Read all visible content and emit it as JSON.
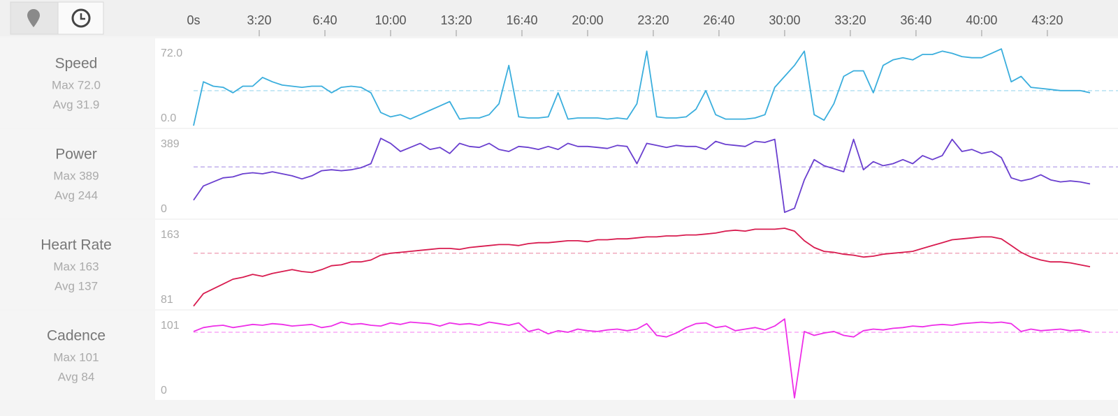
{
  "chart_data": {
    "type": "line",
    "x": [
      0,
      30,
      60,
      90,
      120,
      150,
      180,
      210,
      240,
      270,
      300,
      330,
      360,
      390,
      420,
      450,
      480,
      510,
      540,
      570,
      600,
      630,
      660,
      690,
      720,
      750,
      780,
      810,
      840,
      870,
      900,
      930,
      960,
      990,
      1020,
      1050,
      1080,
      1110,
      1140,
      1170,
      1200,
      1230,
      1260,
      1290,
      1320,
      1350,
      1380,
      1410,
      1440,
      1470,
      1500,
      1530,
      1560,
      1590,
      1620,
      1650,
      1680,
      1710,
      1740,
      1770,
      1800,
      1830,
      1860,
      1890,
      1920,
      1950,
      1980,
      2010,
      2040,
      2070,
      2100,
      2130,
      2160,
      2190,
      2220,
      2250,
      2280,
      2310,
      2340,
      2370,
      2400,
      2430,
      2460,
      2490,
      2520,
      2550,
      2580,
      2610,
      2640,
      2670,
      2700,
      2730
    ],
    "xlim": [
      0,
      2747
    ],
    "xticks": [
      {
        "value": 0,
        "label": "0s"
      },
      {
        "value": 200,
        "label": "3:20"
      },
      {
        "value": 400,
        "label": "6:40"
      },
      {
        "value": 600,
        "label": "10:00"
      },
      {
        "value": 800,
        "label": "13:20"
      },
      {
        "value": 1000,
        "label": "16:40"
      },
      {
        "value": 1200,
        "label": "20:00"
      },
      {
        "value": 1400,
        "label": "23:20"
      },
      {
        "value": 1600,
        "label": "26:40"
      },
      {
        "value": 1800,
        "label": "30:00"
      },
      {
        "value": 2000,
        "label": "33:20"
      },
      {
        "value": 2200,
        "label": "36:40"
      },
      {
        "value": 2400,
        "label": "40:00"
      },
      {
        "value": 2600,
        "label": "43:20"
      }
    ],
    "series": [
      {
        "name": "Speed",
        "color": "#3aaedd",
        "max": 72.0,
        "max_label": "Max 72.0",
        "avg": 31.9,
        "avg_label": "Avg 31.9",
        "ylim": [
          0,
          72.0
        ],
        "yticks": [
          {
            "value": 0,
            "label": "0.0"
          },
          {
            "value": 72.0,
            "label": "72.0"
          }
        ],
        "values": [
          0,
          40,
          36,
          35,
          30,
          36,
          36,
          44,
          40,
          37,
          36,
          35,
          36,
          36,
          30,
          35,
          36,
          35,
          30,
          12,
          8,
          10,
          6,
          10,
          14,
          18,
          22,
          6,
          7,
          7,
          10,
          20,
          55,
          8,
          7,
          7,
          8,
          30,
          6,
          7,
          7,
          7,
          6,
          7,
          6,
          20,
          68,
          8,
          7,
          7,
          8,
          15,
          32,
          10,
          6,
          6,
          6,
          7,
          10,
          35,
          45,
          55,
          68,
          10,
          5,
          20,
          45,
          50,
          50,
          30,
          55,
          60,
          62,
          60,
          65,
          65,
          68,
          66,
          63,
          62,
          62,
          66,
          70,
          40,
          45,
          35,
          34,
          33,
          32,
          32,
          32,
          30
        ]
      },
      {
        "name": "Power",
        "color": "#6a3fcf",
        "max": 389,
        "max_label": "Max 389",
        "avg": 244,
        "avg_label": "Avg 244",
        "ylim": [
          0,
          389
        ],
        "yticks": [
          0,
          389
        ],
        "values": [
          80,
          150,
          170,
          190,
          195,
          210,
          215,
          210,
          220,
          210,
          200,
          185,
          200,
          225,
          230,
          225,
          230,
          240,
          260,
          385,
          360,
          320,
          340,
          360,
          330,
          340,
          310,
          360,
          345,
          340,
          360,
          330,
          320,
          345,
          340,
          330,
          345,
          330,
          360,
          345,
          345,
          340,
          335,
          350,
          345,
          260,
          360,
          350,
          340,
          350,
          345,
          345,
          330,
          370,
          355,
          350,
          345,
          370,
          365,
          380,
          20,
          40,
          180,
          280,
          250,
          235,
          220,
          380,
          230,
          270,
          250,
          260,
          280,
          260,
          300,
          280,
          300,
          380,
          320,
          330,
          310,
          320,
          290,
          190,
          175,
          185,
          205,
          180,
          170,
          175,
          170,
          160
        ]
      },
      {
        "name": "Heart Rate",
        "color": "#d81b4f",
        "max": 163,
        "max_label": "Max 163",
        "avg": 137,
        "avg_label": "Avg 137",
        "ylim": [
          81,
          163
        ],
        "yticks": [
          81,
          163
        ],
        "values": [
          82,
          95,
          100,
          105,
          110,
          112,
          115,
          113,
          116,
          118,
          120,
          118,
          117,
          120,
          124,
          125,
          128,
          128,
          130,
          135,
          137,
          138,
          139,
          140,
          141,
          142,
          142,
          141,
          143,
          144,
          145,
          146,
          146,
          145,
          147,
          148,
          148,
          149,
          150,
          150,
          149,
          151,
          151,
          152,
          152,
          153,
          154,
          154,
          155,
          155,
          156,
          156,
          157,
          158,
          160,
          161,
          160,
          162,
          162,
          162,
          163,
          160,
          150,
          143,
          139,
          138,
          136,
          135,
          133,
          134,
          136,
          137,
          138,
          139,
          142,
          145,
          148,
          151,
          152,
          153,
          154,
          154,
          152,
          145,
          138,
          133,
          130,
          128,
          128,
          127,
          125,
          123
        ]
      },
      {
        "name": "Cadence",
        "color": "#ee2ee8",
        "max": 101,
        "max_label": "Max 101",
        "avg": 84,
        "avg_label": "Avg 84",
        "ylim": [
          0,
          101
        ],
        "yticks": [
          0,
          101
        ],
        "values": [
          85,
          90,
          92,
          93,
          90,
          92,
          94,
          93,
          95,
          94,
          92,
          93,
          94,
          90,
          92,
          97,
          94,
          95,
          93,
          92,
          96,
          94,
          97,
          96,
          95,
          92,
          96,
          94,
          95,
          93,
          97,
          95,
          93,
          96,
          85,
          88,
          82,
          86,
          84,
          88,
          86,
          85,
          87,
          88,
          86,
          88,
          95,
          80,
          78,
          83,
          90,
          95,
          96,
          90,
          92,
          86,
          88,
          90,
          87,
          92,
          101,
          0,
          85,
          80,
          83,
          85,
          80,
          78,
          86,
          88,
          87,
          89,
          90,
          92,
          91,
          93,
          94,
          93,
          95,
          96,
          97,
          96,
          97,
          95,
          85,
          88,
          86,
          87,
          88,
          86,
          87,
          84
        ]
      }
    ]
  }
}
